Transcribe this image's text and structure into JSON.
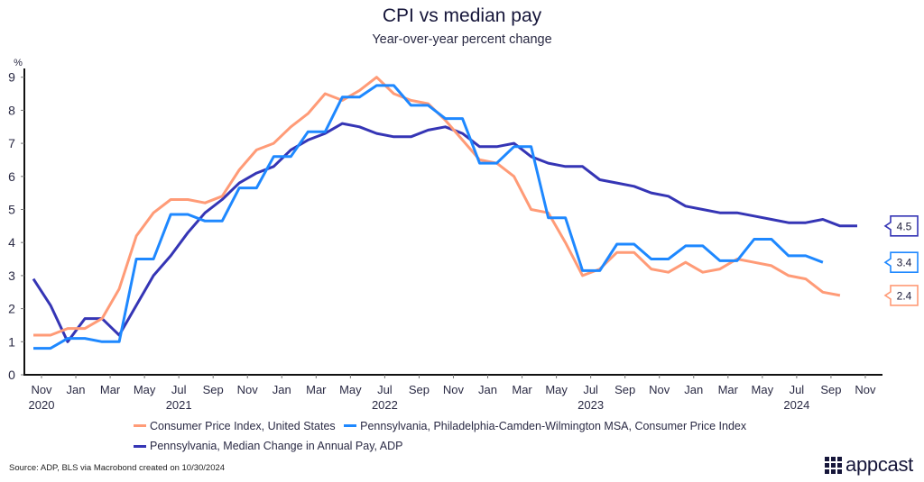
{
  "chart_data": {
    "type": "line",
    "title": "CPI vs median pay",
    "subtitle": "Year-over-year percent change",
    "ylabel": "%",
    "xlabel": "",
    "ylim": [
      0,
      9
    ],
    "yticks": [
      "0",
      "1",
      "2",
      "3",
      "4",
      "5",
      "6",
      "7",
      "8",
      "9"
    ],
    "x_start": "2020-10",
    "xticks": [
      {
        "label": "Nov",
        "year": "2020"
      },
      {
        "label": "Jan",
        "year": ""
      },
      {
        "label": "Mar",
        "year": ""
      },
      {
        "label": "May",
        "year": ""
      },
      {
        "label": "Jul",
        "year": "2021"
      },
      {
        "label": "Sep",
        "year": ""
      },
      {
        "label": "Nov",
        "year": ""
      },
      {
        "label": "Jan",
        "year": ""
      },
      {
        "label": "Mar",
        "year": ""
      },
      {
        "label": "May",
        "year": ""
      },
      {
        "label": "Jul",
        "year": "2022"
      },
      {
        "label": "Sep",
        "year": ""
      },
      {
        "label": "Nov",
        "year": ""
      },
      {
        "label": "Jan",
        "year": ""
      },
      {
        "label": "Mar",
        "year": ""
      },
      {
        "label": "May",
        "year": ""
      },
      {
        "label": "Jul",
        "year": "2023"
      },
      {
        "label": "Sep",
        "year": ""
      },
      {
        "label": "Nov",
        "year": ""
      },
      {
        "label": "Jan",
        "year": ""
      },
      {
        "label": "Mar",
        "year": ""
      },
      {
        "label": "May",
        "year": ""
      },
      {
        "label": "Jul",
        "year": "2024"
      },
      {
        "label": "Sep",
        "year": ""
      },
      {
        "label": "Nov",
        "year": ""
      }
    ],
    "grid": false,
    "legend_position": "bottom",
    "series": [
      {
        "name": "Consumer Price Index, United States",
        "color": "#ff9b77",
        "end_label": "2.4",
        "values": [
          1.2,
          1.2,
          1.4,
          1.4,
          1.7,
          2.6,
          4.2,
          4.9,
          5.3,
          5.3,
          5.2,
          5.4,
          6.2,
          6.8,
          7.0,
          7.5,
          7.9,
          8.5,
          8.3,
          8.6,
          9.0,
          8.5,
          8.3,
          8.2,
          7.7,
          7.1,
          6.5,
          6.4,
          6.0,
          5.0,
          4.9,
          4.0,
          3.0,
          3.2,
          3.7,
          3.7,
          3.2,
          3.1,
          3.4,
          3.1,
          3.2,
          3.5,
          3.4,
          3.3,
          3.0,
          2.9,
          2.5,
          2.4
        ]
      },
      {
        "name": "Pennsylvania, Philadelphia-Camden-Wilmington MSA, Consumer Price Index",
        "color": "#1e88ff",
        "end_label": "3.4",
        "values": [
          0.8,
          0.8,
          1.1,
          1.1,
          1.0,
          1.0,
          3.5,
          3.5,
          4.85,
          4.85,
          4.65,
          4.65,
          5.65,
          5.65,
          6.6,
          6.6,
          7.35,
          7.35,
          8.4,
          8.4,
          8.75,
          8.75,
          8.15,
          8.15,
          7.75,
          7.75,
          6.4,
          6.4,
          6.9,
          6.9,
          4.75,
          4.75,
          3.15,
          3.15,
          3.95,
          3.95,
          3.5,
          3.5,
          3.9,
          3.9,
          3.45,
          3.45,
          4.1,
          4.1,
          3.6,
          3.6,
          3.4
        ]
      },
      {
        "name": "Pennsylvania, Median Change in Annual Pay, ADP",
        "color": "#3535b5",
        "end_label": "4.5",
        "values": [
          2.9,
          2.1,
          1.0,
          1.7,
          1.7,
          1.2,
          2.1,
          3.0,
          3.6,
          4.3,
          4.9,
          5.3,
          5.8,
          6.1,
          6.3,
          6.8,
          7.1,
          7.3,
          7.6,
          7.5,
          7.3,
          7.2,
          7.2,
          7.4,
          7.5,
          7.3,
          6.9,
          6.9,
          7.0,
          6.6,
          6.4,
          6.3,
          6.3,
          5.9,
          5.8,
          5.7,
          5.5,
          5.4,
          5.1,
          5.0,
          4.9,
          4.9,
          4.8,
          4.7,
          4.6,
          4.6,
          4.7,
          4.5,
          4.5
        ]
      }
    ]
  },
  "footer": {
    "source": "Source: ADP, BLS via Macrobond created on 10/30/2024",
    "logo": "appcast"
  }
}
